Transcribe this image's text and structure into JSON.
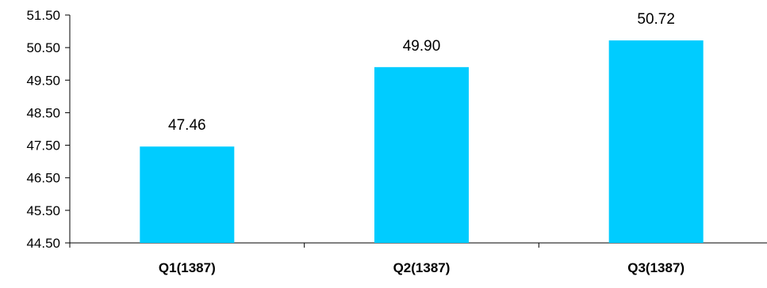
{
  "chart_data": {
    "type": "bar",
    "categories": [
      "Q1(1387)",
      "Q2(1387)",
      "Q3(1387)"
    ],
    "values": [
      47.46,
      49.9,
      50.72
    ],
    "value_labels": [
      "47.46",
      "49.90",
      "50.72"
    ],
    "ylim": [
      44.5,
      51.5
    ],
    "y_ticks": [
      "44.50",
      "45.50",
      "46.50",
      "47.50",
      "48.50",
      "49.50",
      "50.50",
      "51.50"
    ],
    "title": "",
    "xlabel": "",
    "ylabel": "",
    "grid": false,
    "bar_color": "#00CCFF",
    "axis_color": "#000000",
    "text_color": "#000000"
  }
}
